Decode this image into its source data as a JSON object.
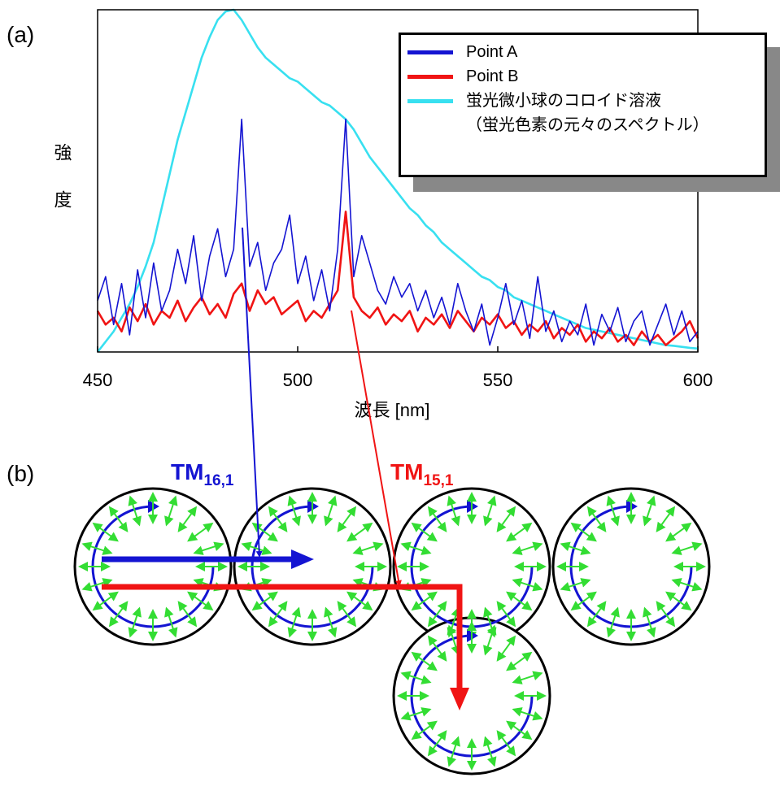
{
  "panel_labels": [
    "(a)",
    "(b)"
  ],
  "chart_data": {
    "type": "line",
    "x_label": "波長 [nm]",
    "y_label": "強度",
    "xlim": [
      450,
      600
    ],
    "xticks": [
      450,
      500,
      550,
      600
    ],
    "ylim": [
      0,
      100
    ],
    "grid": false,
    "legend": "upper right",
    "x": [
      450,
      452,
      454,
      456,
      458,
      460,
      462,
      464,
      466,
      468,
      470,
      472,
      474,
      476,
      478,
      480,
      482,
      484,
      486,
      488,
      490,
      492,
      494,
      496,
      498,
      500,
      502,
      504,
      506,
      508,
      510,
      512,
      514,
      516,
      518,
      520,
      522,
      524,
      526,
      528,
      530,
      532,
      534,
      536,
      538,
      540,
      542,
      544,
      546,
      548,
      550,
      552,
      554,
      556,
      558,
      560,
      562,
      564,
      566,
      568,
      570,
      572,
      574,
      576,
      578,
      580,
      582,
      584,
      586,
      588,
      590,
      592,
      594,
      596,
      598,
      600
    ],
    "series": [
      {
        "name": "Point A",
        "color": "#1414d2",
        "values": [
          15,
          22,
          8,
          20,
          5,
          24,
          10,
          26,
          12,
          18,
          30,
          20,
          34,
          15,
          28,
          36,
          22,
          30,
          68,
          25,
          32,
          18,
          26,
          30,
          40,
          20,
          28,
          15,
          24,
          12,
          30,
          68,
          22,
          34,
          26,
          18,
          14,
          22,
          16,
          20,
          12,
          18,
          10,
          16,
          8,
          20,
          12,
          6,
          14,
          2,
          10,
          20,
          8,
          15,
          4,
          22,
          6,
          12,
          3,
          9,
          5,
          14,
          2,
          11,
          6,
          13,
          3,
          9,
          12,
          2,
          8,
          14,
          5,
          12,
          3,
          6
        ]
      },
      {
        "name": "Point B",
        "color": "#f01414",
        "values": [
          12,
          8,
          10,
          6,
          13,
          9,
          14,
          8,
          12,
          10,
          15,
          9,
          13,
          16,
          11,
          14,
          10,
          17,
          20,
          12,
          18,
          14,
          16,
          11,
          13,
          15,
          9,
          12,
          10,
          14,
          18,
          41,
          16,
          12,
          10,
          13,
          8,
          11,
          9,
          12,
          6,
          10,
          8,
          11,
          7,
          12,
          9,
          6,
          10,
          8,
          11,
          7,
          9,
          5,
          8,
          6,
          9,
          4,
          7,
          5,
          8,
          3,
          6,
          4,
          7,
          3,
          5,
          2,
          6,
          3,
          5,
          2,
          4,
          6,
          9,
          4
        ]
      },
      {
        "name": "蛍光微小球のコロイド溶液\n（蛍光色素の元々のスペクトル）",
        "color": "#38e0f0",
        "values": [
          0,
          3,
          6,
          10,
          14,
          19,
          25,
          32,
          42,
          52,
          62,
          70,
          78,
          86,
          92,
          97,
          99.5,
          100,
          97,
          93,
          89,
          86,
          84,
          82,
          80,
          79,
          77,
          75,
          73,
          72,
          70,
          68,
          65,
          61,
          57,
          54,
          51,
          48,
          45,
          42,
          40,
          37,
          35,
          32,
          30,
          28,
          26,
          24,
          22,
          21,
          19,
          18,
          16,
          15,
          14,
          13,
          12,
          11,
          10,
          9,
          8,
          7,
          6.5,
          6,
          5.5,
          5,
          4.5,
          4,
          3.5,
          3,
          2.5,
          2,
          1.8,
          1.5,
          1.2,
          1
        ]
      }
    ]
  },
  "diagram": {
    "modes": [
      {
        "name": "TM",
        "sub": "16,1",
        "color": "#1414d2"
      },
      {
        "name": "TM",
        "sub": "15,1",
        "color": "#f01414"
      }
    ]
  }
}
